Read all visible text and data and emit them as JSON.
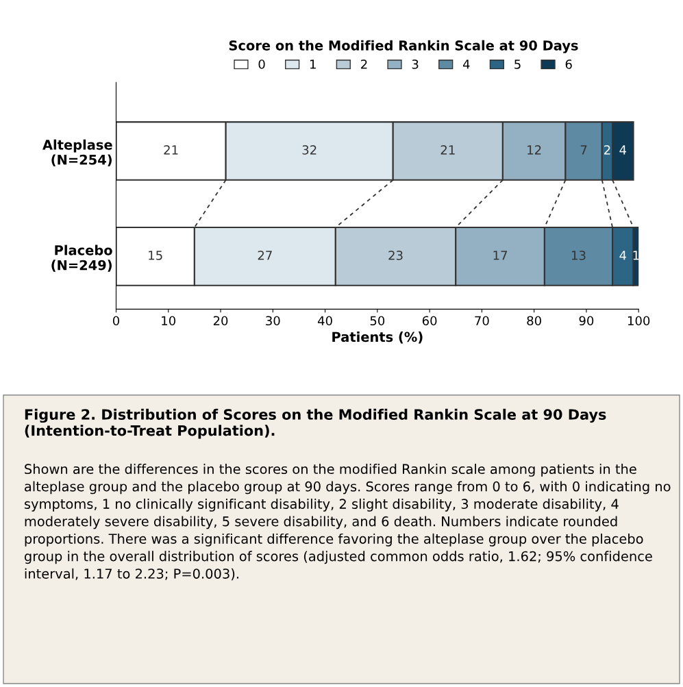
{
  "chart_data": {
    "type": "bar",
    "orientation": "horizontal",
    "stacked": true,
    "title": "Figure 2. Distribution of Scores on the Modified Rankin Scale at 90 Days (Intention-to-Treat Population).",
    "legend_title": "Score on the Modified Rankin Scale at 90 Days",
    "xlabel": "Patients (%)",
    "categories": [
      "Alteplase\n(N=254)",
      "Placebo\n(N=249)"
    ],
    "series": [
      {
        "name": "0",
        "color": "#ffffff",
        "values": [
          21,
          15
        ]
      },
      {
        "name": "1",
        "color": "#dde8ee",
        "values": [
          32,
          27
        ]
      },
      {
        "name": "2",
        "color": "#b9cbd7",
        "values": [
          21,
          23
        ]
      },
      {
        "name": "3",
        "color": "#94b0c3",
        "values": [
          12,
          17
        ]
      },
      {
        "name": "4",
        "color": "#5f8aa3",
        "values": [
          7,
          13
        ]
      },
      {
        "name": "5",
        "color": "#2d6584",
        "values": [
          2,
          4
        ]
      },
      {
        "name": "6",
        "color": "#0e3a56",
        "values": [
          4,
          1
        ]
      }
    ],
    "xlim": [
      0,
      100
    ],
    "xticks": [
      0,
      10,
      20,
      30,
      40,
      50,
      60,
      70,
      80,
      90,
      100
    ],
    "data_labels": true,
    "legend": "top",
    "grid": false,
    "annotations": [
      "Shown are the differences in the scores on the modified Rankin scale among patients in the alteplase group and the placebo group at 90 days. Scores range from 0 to 6, with 0 indicating no symptoms, 1 no clinically significant disability, 2 slight disability, 3 moderate disability, 4 moderately severe disability, 5 severe disability, and 6 death. Numbers indicate rounded proportions. There was a significant difference favoring the alteplase group over the placebo group in the overall distribution of scores (adjusted common odds ratio, 1.62; 95% confidence interval, 1.17 to 2.23; P=0.003)."
    ]
  }
}
